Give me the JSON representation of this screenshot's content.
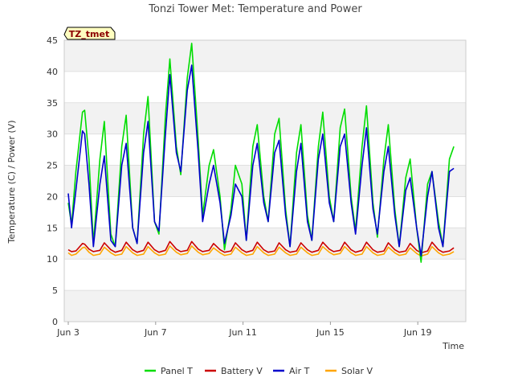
{
  "chart_data": {
    "type": "line",
    "title": "Tonzi Tower Met: Temperature and Power",
    "xlabel": "Time",
    "ylabel": "Temperature (C) / Power (V)",
    "tag": "TZ_tmet",
    "ylim": [
      0,
      45
    ],
    "yticks": [
      0,
      5,
      10,
      15,
      20,
      25,
      30,
      35,
      40,
      45
    ],
    "xlim": [
      0,
      18
    ],
    "xticks": [
      {
        "label": "Jun 3",
        "value": 0
      },
      {
        "label": "Jun 7",
        "value": 4
      },
      {
        "label": "Jun 11",
        "value": 8
      },
      {
        "label": "Jun 15",
        "value": 12
      },
      {
        "label": "Jun 19",
        "value": 16
      }
    ],
    "grid": true,
    "legend_position": "bottom",
    "series": [
      {
        "name": "Panel T",
        "color": "#00dd00",
        "x": [
          0.0,
          0.15,
          0.35,
          0.65,
          0.75,
          0.95,
          1.15,
          1.45,
          1.65,
          1.95,
          2.15,
          2.45,
          2.65,
          2.95,
          3.15,
          3.45,
          3.65,
          3.95,
          4.15,
          4.45,
          4.65,
          4.95,
          5.15,
          5.45,
          5.65,
          5.95,
          6.15,
          6.45,
          6.65,
          6.95,
          7.15,
          7.45,
          7.65,
          7.95,
          8.15,
          8.45,
          8.65,
          8.95,
          9.15,
          9.45,
          9.65,
          9.95,
          10.15,
          10.45,
          10.65,
          10.95,
          11.15,
          11.45,
          11.65,
          11.95,
          12.15,
          12.45,
          12.65,
          12.95,
          13.15,
          13.45,
          13.65,
          13.95,
          14.15,
          14.45,
          14.65,
          14.95,
          15.15,
          15.45,
          15.65,
          15.95,
          16.15,
          16.45,
          16.65,
          16.95,
          17.15,
          17.45,
          17.65
        ],
        "y": [
          19,
          15.5,
          24,
          33.5,
          33.8,
          26,
          12.5,
          26,
          32,
          14,
          12,
          28,
          33,
          15,
          12.5,
          30,
          36,
          16,
          14,
          33,
          42,
          28,
          23.5,
          39,
          44.5,
          29,
          17,
          25,
          27.5,
          20,
          11.5,
          18,
          25,
          22,
          13,
          28,
          31.5,
          20,
          16,
          30,
          32.5,
          18,
          12,
          27,
          31.5,
          17,
          13,
          28,
          33.5,
          20,
          16,
          31,
          34,
          20,
          14.5,
          28,
          34.5,
          19,
          13.5,
          26,
          31.5,
          18,
          12,
          23,
          26,
          15,
          9.5,
          22,
          24,
          16,
          12,
          26,
          28
        ]
      },
      {
        "name": "Battery V",
        "color": "#cc0000",
        "x": [
          0.0,
          0.15,
          0.35,
          0.65,
          0.75,
          0.95,
          1.15,
          1.45,
          1.65,
          1.95,
          2.15,
          2.45,
          2.65,
          2.95,
          3.15,
          3.45,
          3.65,
          3.95,
          4.15,
          4.45,
          4.65,
          4.95,
          5.15,
          5.45,
          5.65,
          5.95,
          6.15,
          6.45,
          6.65,
          6.95,
          7.15,
          7.45,
          7.65,
          7.95,
          8.15,
          8.45,
          8.65,
          8.95,
          9.15,
          9.45,
          9.65,
          9.95,
          10.15,
          10.45,
          10.65,
          10.95,
          11.15,
          11.45,
          11.65,
          11.95,
          12.15,
          12.45,
          12.65,
          12.95,
          13.15,
          13.45,
          13.65,
          13.95,
          14.15,
          14.45,
          14.65,
          14.95,
          15.15,
          15.45,
          15.65,
          15.95,
          16.15,
          16.45,
          16.65,
          16.95,
          17.15,
          17.45,
          17.65
        ],
        "y": [
          11.5,
          11.2,
          11.3,
          12.5,
          12.4,
          11.6,
          11.2,
          11.4,
          12.6,
          11.5,
          11.1,
          11.4,
          12.7,
          11.5,
          11.1,
          11.4,
          12.7,
          11.5,
          11.1,
          11.4,
          12.8,
          11.6,
          11.2,
          11.4,
          12.8,
          11.6,
          11.2,
          11.4,
          12.5,
          11.5,
          11.1,
          11.3,
          12.6,
          11.5,
          11.1,
          11.4,
          12.7,
          11.5,
          11.1,
          11.3,
          12.6,
          11.5,
          11.1,
          11.3,
          12.6,
          11.5,
          11.1,
          11.4,
          12.7,
          11.6,
          11.2,
          11.4,
          12.7,
          11.5,
          11.1,
          11.4,
          12.7,
          11.5,
          11.1,
          11.3,
          12.6,
          11.5,
          11.1,
          11.3,
          12.5,
          11.4,
          11.0,
          11.3,
          12.7,
          11.5,
          11.1,
          11.3,
          11.8
        ]
      },
      {
        "name": "Air T",
        "color": "#0000cc",
        "x": [
          0.0,
          0.15,
          0.35,
          0.65,
          0.75,
          0.95,
          1.15,
          1.45,
          1.65,
          1.95,
          2.15,
          2.45,
          2.65,
          2.95,
          3.15,
          3.45,
          3.65,
          3.95,
          4.15,
          4.45,
          4.65,
          4.95,
          5.15,
          5.45,
          5.65,
          5.95,
          6.15,
          6.45,
          6.65,
          6.95,
          7.15,
          7.45,
          7.65,
          7.95,
          8.15,
          8.45,
          8.65,
          8.95,
          9.15,
          9.45,
          9.65,
          9.95,
          10.15,
          10.45,
          10.65,
          10.95,
          11.15,
          11.45,
          11.65,
          11.95,
          12.15,
          12.45,
          12.65,
          12.95,
          13.15,
          13.45,
          13.65,
          13.95,
          14.15,
          14.45,
          14.65,
          14.95,
          15.15,
          15.45,
          15.65,
          15.95,
          16.15,
          16.45,
          16.65,
          16.95,
          17.15,
          17.45,
          17.65
        ],
        "y": [
          20.5,
          15,
          21,
          30.5,
          30,
          22,
          12,
          22,
          26.5,
          13,
          12,
          25,
          28.5,
          15,
          12.5,
          27,
          32,
          16,
          14.5,
          30,
          39.5,
          27,
          24,
          37,
          41,
          27,
          16,
          22,
          25,
          19,
          12.5,
          17,
          22,
          20,
          13,
          25,
          28.5,
          19,
          16,
          27,
          29,
          17,
          12,
          24,
          28.5,
          16,
          13,
          26,
          30,
          19,
          16,
          28,
          30,
          19,
          14,
          25,
          31,
          18,
          14,
          24,
          28,
          17,
          12,
          21,
          23,
          15,
          10.5,
          20,
          24,
          15,
          12,
          24,
          24.5
        ]
      },
      {
        "name": "Solar V",
        "color": "#ffa500",
        "x": [
          0.0,
          0.15,
          0.35,
          0.65,
          0.75,
          0.95,
          1.15,
          1.45,
          1.65,
          1.95,
          2.15,
          2.45,
          2.65,
          2.95,
          3.15,
          3.45,
          3.65,
          3.95,
          4.15,
          4.45,
          4.65,
          4.95,
          5.15,
          5.45,
          5.65,
          5.95,
          6.15,
          6.45,
          6.65,
          6.95,
          7.15,
          7.45,
          7.65,
          7.95,
          8.15,
          8.45,
          8.65,
          8.95,
          9.15,
          9.45,
          9.65,
          9.95,
          10.15,
          10.45,
          10.65,
          10.95,
          11.15,
          11.45,
          11.65,
          11.95,
          12.15,
          12.45,
          12.65,
          12.95,
          13.15,
          13.45,
          13.65,
          13.95,
          14.15,
          14.45,
          14.65,
          14.95,
          15.15,
          15.45,
          15.65,
          15.95,
          16.15,
          16.45,
          16.65,
          16.95,
          17.15,
          17.45,
          17.65
        ],
        "y": [
          11.0,
          10.6,
          10.8,
          11.8,
          11.9,
          11.1,
          10.6,
          10.8,
          11.9,
          11.0,
          10.6,
          10.8,
          12.0,
          11.0,
          10.6,
          10.8,
          12.0,
          11.0,
          10.6,
          10.8,
          12.1,
          11.1,
          10.7,
          10.9,
          12.1,
          11.1,
          10.7,
          10.9,
          11.8,
          11.0,
          10.6,
          10.8,
          11.9,
          11.0,
          10.6,
          10.8,
          12.0,
          11.0,
          10.6,
          10.8,
          11.9,
          11.0,
          10.6,
          10.8,
          11.9,
          11.0,
          10.6,
          10.8,
          12.0,
          11.1,
          10.7,
          10.9,
          12.0,
          11.0,
          10.6,
          10.8,
          12.0,
          11.0,
          10.6,
          10.8,
          11.9,
          11.0,
          10.6,
          10.8,
          11.8,
          10.9,
          10.5,
          10.8,
          12.0,
          11.0,
          10.6,
          10.8,
          11.2
        ]
      }
    ]
  }
}
